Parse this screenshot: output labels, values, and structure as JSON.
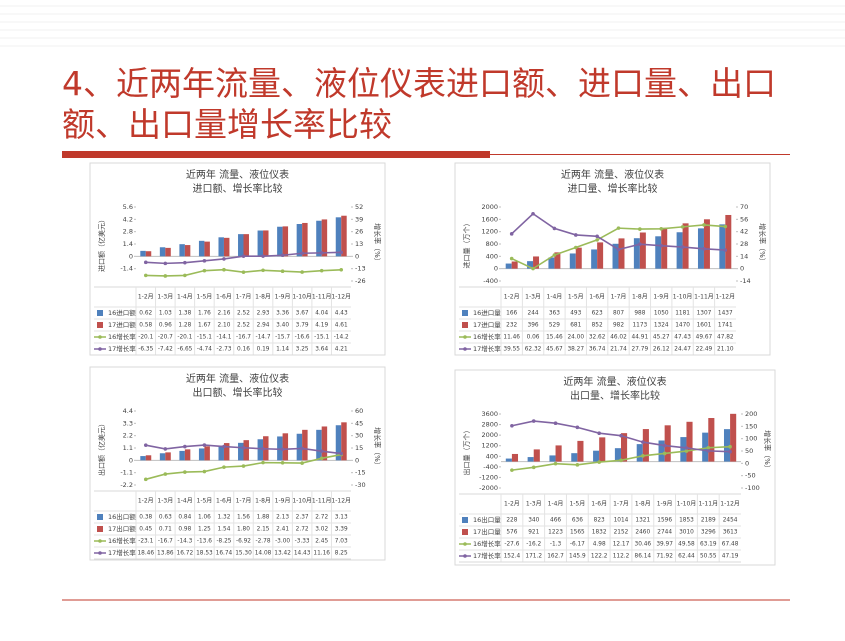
{
  "title": [
    "4、近两年流量、液位仪表进口额、进口量、出口",
    "额、出口量增长率比较"
  ],
  "chart_data": [
    {
      "type": "combo",
      "title": "近两年 流量、液位仪表",
      "subtitle": "进口额、增长率比较",
      "y_label": "进口额（亿美元）",
      "y2_label": "增长率（%）",
      "categories": [
        "1-2月",
        "1-3月",
        "1-4月",
        "1-5月",
        "1-6月",
        "1-7月",
        "1-8月",
        "1-9月",
        "1-10月",
        "1-11月",
        "1-12月"
      ],
      "ylim": [
        -2.8,
        5.6
      ],
      "yticks": [
        -1.4,
        0,
        1.4,
        2.8,
        4.2,
        5.6
      ],
      "y2lim": [
        -26,
        52
      ],
      "y2ticks": [
        -26,
        -13,
        0,
        13,
        26,
        39,
        52
      ],
      "series": [
        {
          "name": "16进口额",
          "color": "#4f81bd",
          "values": [
            0.62,
            1.03,
            1.38,
            1.76,
            2.16,
            2.52,
            2.93,
            3.36,
            3.67,
            4.04,
            4.43
          ],
          "value_labels": [
            "0.62",
            "1.03",
            "1.38",
            "1.76",
            "2.16",
            "2.52",
            "2.93",
            "3.36",
            "3.67",
            "4.04",
            "4.43"
          ]
        },
        {
          "name": "17进口额",
          "color": "#c0504d",
          "values": [
            0.58,
            0.96,
            1.28,
            1.67,
            2.1,
            2.52,
            2.94,
            3.4,
            3.79,
            4.19,
            4.61
          ],
          "value_labels": [
            "0.58",
            "0.96",
            "1.28",
            "1.67",
            "2.10",
            "2.52",
            "2.94",
            "3.40",
            "3.79",
            "4.19",
            "4.61"
          ]
        },
        {
          "name": "16增长率",
          "color": "#9bbb59",
          "axis": "y2",
          "values": [
            -20.1,
            -20.7,
            -20.1,
            -15.1,
            -14.1,
            -16.7,
            -14.7,
            -15.7,
            -16.6,
            -15.1,
            -14.2
          ],
          "value_labels": [
            "-20.1",
            "-20.7",
            "-20.1",
            "-15.1",
            "-14.1",
            "-16.7",
            "-14.7",
            "-15.7",
            "-16.6",
            "-15.1",
            "-14.2"
          ]
        },
        {
          "name": "17增长率",
          "color": "#8064a2",
          "axis": "y2",
          "values": [
            -6.35,
            -7.42,
            -6.65,
            -4.74,
            -2.73,
            0.16,
            0.19,
            1.14,
            3.25,
            3.64,
            4.21
          ],
          "value_labels": [
            "-6.35",
            "-7.42",
            "-6.65",
            "-4.74",
            "-2.73",
            "0.16",
            "0.19",
            "1.14",
            "3.25",
            "3.64",
            "4.21"
          ]
        }
      ]
    },
    {
      "type": "combo",
      "title": "近两年 流量、液位仪表",
      "subtitle": "进口量、增长率比较",
      "y_label": "进口量（万个）",
      "y2_label": "增长率（%）",
      "categories": [
        "1-2月",
        "1-3月",
        "1-4月",
        "1-5月",
        "1-6月",
        "1-7月",
        "1-8月",
        "1-9月",
        "1-10月",
        "1-11月",
        "1-12月"
      ],
      "ylim": [
        -400,
        2000
      ],
      "yticks": [
        -400,
        0,
        400,
        800,
        1200,
        1600,
        2000
      ],
      "y2lim": [
        -14,
        70
      ],
      "y2ticks": [
        -14,
        0,
        14,
        28,
        42,
        56,
        70
      ],
      "series": [
        {
          "name": "16进口量",
          "color": "#4f81bd",
          "values": [
            166,
            244,
            363,
            493,
            623,
            807,
            988,
            1050,
            1181,
            1307,
            1437
          ],
          "value_labels": [
            "166",
            "244",
            "363",
            "493",
            "623",
            "807",
            "988",
            "1050",
            "1181",
            "1307",
            "1437"
          ]
        },
        {
          "name": "17进口量",
          "color": "#c0504d",
          "values": [
            232,
            396,
            529,
            681,
            852,
            982,
            1173,
            1324,
            1470,
            1601,
            1741
          ],
          "value_labels": [
            "232",
            "396",
            "529",
            "681",
            "852",
            "982",
            "1173",
            "1324",
            "1470",
            "1601",
            "1741"
          ]
        },
        {
          "name": "16增长率",
          "color": "#9bbb59",
          "axis": "y2",
          "values": [
            11.46,
            0.06,
            15.46,
            24,
            32.62,
            46.02,
            44.91,
            45.27,
            47.43,
            49.67,
            47.82
          ],
          "value_labels": [
            "11.46",
            "0.06",
            "15.46",
            "24.00",
            "32.62",
            "46.02",
            "44.91",
            "45.27",
            "47.43",
            "49.67",
            "47.82"
          ]
        },
        {
          "name": "17增长率",
          "color": "#8064a2",
          "axis": "y2",
          "values": [
            39.55,
            62.32,
            45.67,
            38.27,
            36.74,
            21.74,
            27.79,
            26.12,
            24.47,
            22.49,
            21.1
          ],
          "value_labels": [
            "39.55",
            "62.32",
            "45.67",
            "38.27",
            "36.74",
            "21.74",
            "27.79",
            "26.12",
            "24.47",
            "22.49",
            "21.10"
          ]
        }
      ]
    },
    {
      "type": "combo",
      "title": "近两年 流量、液位仪表",
      "subtitle": "出口额、增长率比较",
      "y_label": "出口额（亿美元）",
      "y2_label": "增长率（%）",
      "categories": [
        "1-2月",
        "1-3月",
        "1-4月",
        "1-5月",
        "1-6月",
        "1-7月",
        "1-8月",
        "1-9月",
        "1-10月",
        "1-11月",
        "1-12月"
      ],
      "ylim": [
        -2.2,
        4.4
      ],
      "yticks": [
        -2.2,
        -1.1,
        0,
        1.1,
        2.2,
        3.3,
        4.4
      ],
      "y2lim": [
        -30,
        60
      ],
      "y2ticks": [
        -30,
        -15,
        0,
        15,
        30,
        45,
        60
      ],
      "series": [
        {
          "name": "16出口额",
          "color": "#4f81bd",
          "values": [
            0.38,
            0.63,
            0.84,
            1.06,
            1.32,
            1.56,
            1.88,
            2.13,
            2.37,
            2.72,
            3.13
          ],
          "value_labels": [
            "0.38",
            "0.63",
            "0.84",
            "1.06",
            "1.32",
            "1.56",
            "1.88",
            "2.13",
            "2.37",
            "2.72",
            "3.13"
          ]
        },
        {
          "name": "17出口额",
          "color": "#c0504d",
          "values": [
            0.45,
            0.71,
            0.98,
            1.25,
            1.54,
            1.8,
            2.15,
            2.41,
            2.72,
            3.02,
            3.39
          ],
          "value_labels": [
            "0.45",
            "0.71",
            "0.98",
            "1.25",
            "1.54",
            "1.80",
            "2.15",
            "2.41",
            "2.72",
            "3.02",
            "3.39"
          ]
        },
        {
          "name": "16增长率",
          "color": "#9bbb59",
          "axis": "y2",
          "values": [
            -23.1,
            -16.7,
            -14.3,
            -13.6,
            -8.25,
            -6.92,
            -2.78,
            -3,
            -3.33,
            2.45,
            7.03
          ],
          "value_labels": [
            "-23.1",
            "-16.7",
            "-14.3",
            "-13.6",
            "-8.25",
            "-6.92",
            "-2.78",
            "-3.00",
            "-3.33",
            "2.45",
            "7.03"
          ]
        },
        {
          "name": "17增长率",
          "color": "#8064a2",
          "axis": "y2",
          "values": [
            18.46,
            13.86,
            16.72,
            18.53,
            16.74,
            15.3,
            14.08,
            13.42,
            14.43,
            11.16,
            8.25
          ],
          "value_labels": [
            "18.46",
            "13.86",
            "16.72",
            "18.53",
            "16.74",
            "15.30",
            "14.08",
            "13.42",
            "14.43",
            "11.16",
            "8.25"
          ]
        }
      ]
    },
    {
      "type": "combo",
      "title": "近两年 流量、液位仪表",
      "subtitle": "出口量、增长率比较",
      "y_label": "出口量（万个）",
      "y2_label": "增长率（%）",
      "categories": [
        "1-2月",
        "1-3月",
        "1-4月",
        "1-5月",
        "1-6月",
        "1-7月",
        "1-8月",
        "1-9月",
        "1-10月",
        "1-11月",
        "1-12月"
      ],
      "ylim": [
        -2000,
        3600
      ],
      "yticks": [
        -2000,
        -1200,
        -400,
        400,
        1200,
        2000,
        2800,
        3600
      ],
      "y2lim": [
        -100,
        200
      ],
      "y2ticks": [
        -100,
        -50,
        0,
        50,
        100,
        150,
        200
      ],
      "series": [
        {
          "name": "16出口量",
          "color": "#4f81bd",
          "values": [
            228,
            340,
            466,
            636,
            823,
            1014,
            1321,
            1596,
            1853,
            2189,
            2454
          ],
          "value_labels": [
            "228",
            "340",
            "466",
            "636",
            "823",
            "1014",
            "1321",
            "1596",
            "1853",
            "2189",
            "2454"
          ]
        },
        {
          "name": "17出口量",
          "color": "#c0504d",
          "values": [
            576,
            921,
            1223,
            1565,
            1832,
            2152,
            2460,
            2744,
            3010,
            3296,
            3613
          ],
          "value_labels": [
            "576",
            "921",
            "1223",
            "1565",
            "1832",
            "2152",
            "2460",
            "2744",
            "3010",
            "3296",
            "3613"
          ]
        },
        {
          "name": "16增长率",
          "color": "#9bbb59",
          "axis": "y2",
          "values": [
            -27.6,
            -16.2,
            -1.3,
            -6.17,
            4.98,
            12.17,
            30.46,
            39.97,
            49.58,
            63.19,
            67.48
          ],
          "value_labels": [
            "-27.6",
            "-16.2",
            "-1.3",
            "-6.17",
            "4.98",
            "12.17",
            "30.46",
            "39.97",
            "49.58",
            "63.19",
            "67.48"
          ]
        },
        {
          "name": "17增长率",
          "color": "#8064a2",
          "axis": "y2",
          "values": [
            152.4,
            171.2,
            162.7,
            145.9,
            122.2,
            112.2,
            86.14,
            71.92,
            62.44,
            50.55,
            47.19
          ],
          "value_labels": [
            "152.4",
            "171.2",
            "162.7",
            "145.9",
            "122.2",
            "112.2",
            "86.14",
            "71.92",
            "62.44",
            "50.55",
            "47.19"
          ]
        }
      ]
    }
  ]
}
